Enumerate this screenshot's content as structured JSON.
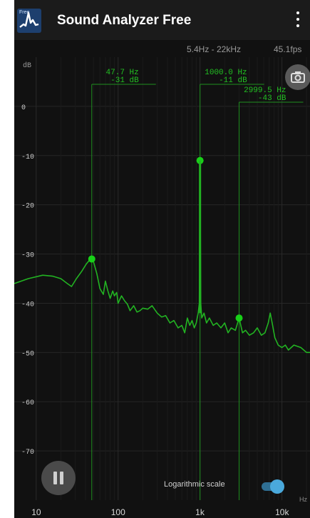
{
  "app": {
    "title": "Sound Analyzer Free",
    "logo_badge": "Free"
  },
  "header": {
    "range": "5.4Hz - 22kHz",
    "fps": "45.1fps"
  },
  "controls": {
    "log_scale_label": "Logarithmic scale",
    "log_scale_on": true
  },
  "icons": {
    "menu": "overflow-menu-icon",
    "camera": "camera-icon",
    "pause": "pause-icon",
    "logo": "spectrum-logo-icon"
  },
  "colors": {
    "spectrum": "#22b322",
    "peak": "#18d018",
    "toggle": "#4aa9dc"
  },
  "chart_data": {
    "type": "line",
    "ylabel": "dB",
    "xlabel": "Hz",
    "x_scale": "log",
    "xlim": [
      5.4,
      22000
    ],
    "ylim": [
      -80,
      10
    ],
    "x_ticks": [
      {
        "value": 10,
        "label": "10"
      },
      {
        "value": 100,
        "label": "100"
      },
      {
        "value": 1000,
        "label": "1k"
      },
      {
        "value": 10000,
        "label": "10k"
      }
    ],
    "y_ticks": [
      0,
      -10,
      -20,
      -30,
      -40,
      -50,
      -60,
      -70
    ],
    "peaks": [
      {
        "freq": 47.7,
        "db": -31,
        "freq_label": "47.7 Hz",
        "db_label": "-31 dB"
      },
      {
        "freq": 1000.0,
        "db": -11,
        "freq_label": "1000.0 Hz",
        "db_label": "-11 dB"
      },
      {
        "freq": 2999.5,
        "db": -43,
        "freq_label": "2999.5 Hz",
        "db_label": "-43 dB"
      }
    ],
    "spectrum": [
      [
        5.4,
        -36
      ],
      [
        8,
        -35
      ],
      [
        12,
        -34.3
      ],
      [
        16,
        -34.5
      ],
      [
        20,
        -35
      ],
      [
        24,
        -36
      ],
      [
        27,
        -36.6
      ],
      [
        31,
        -35
      ],
      [
        36,
        -33.5
      ],
      [
        41,
        -32
      ],
      [
        45,
        -31.2
      ],
      [
        47.7,
        -31
      ],
      [
        50,
        -31.5
      ],
      [
        55,
        -34
      ],
      [
        60,
        -37
      ],
      [
        66,
        -38.2
      ],
      [
        70,
        -35.5
      ],
      [
        75,
        -37.5
      ],
      [
        80,
        -39
      ],
      [
        86,
        -37.5
      ],
      [
        90,
        -38.5
      ],
      [
        96,
        -37.8
      ],
      [
        100,
        -40
      ],
      [
        110,
        -38.5
      ],
      [
        120,
        -39.5
      ],
      [
        130,
        -40.2
      ],
      [
        140,
        -41.5
      ],
      [
        155,
        -40.5
      ],
      [
        170,
        -41.8
      ],
      [
        185,
        -41.5
      ],
      [
        200,
        -41
      ],
      [
        230,
        -41.2
      ],
      [
        260,
        -40.5
      ],
      [
        300,
        -42
      ],
      [
        340,
        -42.8
      ],
      [
        380,
        -42.5
      ],
      [
        430,
        -44
      ],
      [
        480,
        -43.5
      ],
      [
        540,
        -45
      ],
      [
        600,
        -44.5
      ],
      [
        650,
        -46
      ],
      [
        700,
        -43
      ],
      [
        750,
        -44.5
      ],
      [
        800,
        -43.5
      ],
      [
        850,
        -45
      ],
      [
        900,
        -44
      ],
      [
        950,
        -42
      ],
      [
        980,
        -40
      ],
      [
        1000,
        -11
      ],
      [
        1020,
        -40
      ],
      [
        1050,
        -43
      ],
      [
        1120,
        -42
      ],
      [
        1200,
        -44
      ],
      [
        1300,
        -43
      ],
      [
        1450,
        -44.5
      ],
      [
        1600,
        -44
      ],
      [
        1800,
        -45
      ],
      [
        2000,
        -44
      ],
      [
        2200,
        -46
      ],
      [
        2400,
        -45
      ],
      [
        2700,
        -45.5
      ],
      [
        2999.5,
        -43
      ],
      [
        3300,
        -46
      ],
      [
        3600,
        -45.5
      ],
      [
        4000,
        -46.5
      ],
      [
        4500,
        -46
      ],
      [
        5000,
        -45
      ],
      [
        5600,
        -46.5
      ],
      [
        6200,
        -46
      ],
      [
        6800,
        -44
      ],
      [
        7200,
        -42
      ],
      [
        7600,
        -44
      ],
      [
        8200,
        -47
      ],
      [
        9000,
        -48.5
      ],
      [
        10000,
        -49
      ],
      [
        11000,
        -48.5
      ],
      [
        12000,
        -49.5
      ],
      [
        14000,
        -48.5
      ],
      [
        17000,
        -49
      ],
      [
        20000,
        -50
      ],
      [
        22000,
        -50
      ]
    ]
  }
}
